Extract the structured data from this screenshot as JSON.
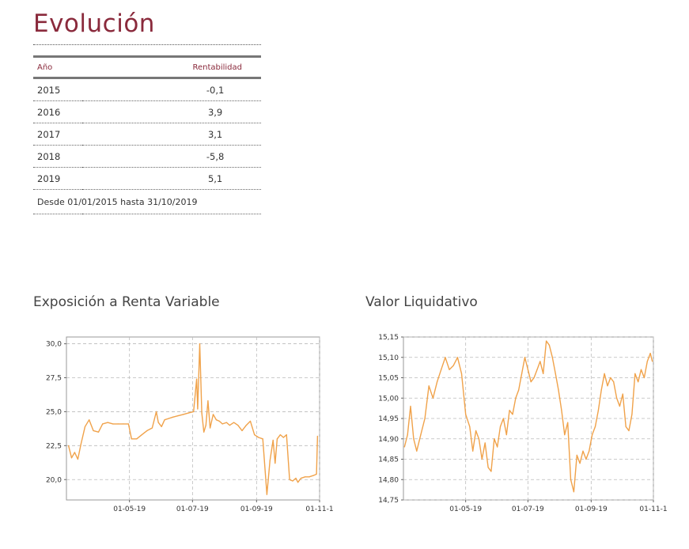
{
  "heading": "Evolución",
  "table": {
    "col_year": "Año",
    "col_return": "Rentabilidad",
    "rows": [
      {
        "year": "2015",
        "value": "-0,1"
      },
      {
        "year": "2016",
        "value": "3,9"
      },
      {
        "year": "2017",
        "value": "3,1"
      },
      {
        "year": "2018",
        "value": "-5,8"
      },
      {
        "year": "2019",
        "value": "5,1"
      }
    ],
    "footer": "Desde 01/01/2015 hasta 31/10/2019"
  },
  "chart_data": [
    {
      "type": "line",
      "title": "Exposición a Renta Variable",
      "xlabel": "",
      "ylabel": "",
      "ylim": [
        18.5,
        30.5
      ],
      "yticks": [
        20.0,
        22.5,
        25.0,
        27.5,
        30.0
      ],
      "ytick_labels": [
        "20,0",
        "22,5",
        "25,0",
        "27,5",
        "30,0"
      ],
      "x_range": [
        "2019-03-01",
        "2019-11-01"
      ],
      "xticks": [
        "2019-05-01",
        "2019-07-01",
        "2019-09-01",
        "2019-11-01"
      ],
      "xtick_labels": [
        "01-05-19",
        "01-07-19",
        "01-09-19",
        "01-11-1"
      ],
      "grid": true,
      "color": "#f0a24a",
      "x": [
        "2019-03-03",
        "2019-03-06",
        "2019-03-09",
        "2019-03-12",
        "2019-03-15",
        "2019-03-19",
        "2019-03-23",
        "2019-03-27",
        "2019-04-01",
        "2019-04-05",
        "2019-04-10",
        "2019-04-15",
        "2019-04-20",
        "2019-04-25",
        "2019-04-30",
        "2019-05-03",
        "2019-05-08",
        "2019-05-13",
        "2019-05-18",
        "2019-05-23",
        "2019-05-27",
        "2019-05-29",
        "2019-06-01",
        "2019-06-04",
        "2019-06-08",
        "2019-06-12",
        "2019-06-17",
        "2019-06-22",
        "2019-06-27",
        "2019-07-02",
        "2019-07-05",
        "2019-07-06",
        "2019-07-08",
        "2019-07-10",
        "2019-07-12",
        "2019-07-14",
        "2019-07-16",
        "2019-07-18",
        "2019-07-21",
        "2019-07-24",
        "2019-07-27",
        "2019-07-30",
        "2019-08-03",
        "2019-08-06",
        "2019-08-10",
        "2019-08-14",
        "2019-08-18",
        "2019-08-22",
        "2019-08-26",
        "2019-08-30",
        "2019-09-03",
        "2019-09-07",
        "2019-09-11",
        "2019-09-14",
        "2019-09-17",
        "2019-09-19",
        "2019-09-21",
        "2019-09-24",
        "2019-09-27",
        "2019-09-30",
        "2019-10-03",
        "2019-10-06",
        "2019-10-09",
        "2019-10-11",
        "2019-10-14",
        "2019-10-18",
        "2019-10-22",
        "2019-10-26",
        "2019-10-29",
        "2019-10-30"
      ],
      "values": [
        22.5,
        21.6,
        22.0,
        21.5,
        22.6,
        23.9,
        24.4,
        23.6,
        23.5,
        24.1,
        24.2,
        24.1,
        24.1,
        24.1,
        24.1,
        23.0,
        23.0,
        23.3,
        23.6,
        23.8,
        25.0,
        24.2,
        23.9,
        24.4,
        24.5,
        24.6,
        24.7,
        24.8,
        24.9,
        25.0,
        27.4,
        25.2,
        30.0,
        24.9,
        23.5,
        24.0,
        25.8,
        23.8,
        24.8,
        24.4,
        24.3,
        24.1,
        24.2,
        24.0,
        24.2,
        24.0,
        23.6,
        24.0,
        24.3,
        23.3,
        23.1,
        23.0,
        18.9,
        21.4,
        22.9,
        21.2,
        23.0,
        23.3,
        23.1,
        23.3,
        20.0,
        19.9,
        20.1,
        19.8,
        20.1,
        20.2,
        20.2,
        20.3,
        20.4,
        23.2
      ]
    },
    {
      "type": "line",
      "title": "Valor Liquidativo",
      "xlabel": "",
      "ylabel": "",
      "ylim": [
        14.75,
        15.15
      ],
      "yticks": [
        14.75,
        14.8,
        14.85,
        14.9,
        14.95,
        15.0,
        15.05,
        15.1,
        15.15
      ],
      "ytick_labels": [
        "14,75",
        "14,80",
        "14,85",
        "14,90",
        "14,95",
        "15,00",
        "15,05",
        "15,10",
        "15,15"
      ],
      "x_range": [
        "2019-03-01",
        "2019-11-01"
      ],
      "xticks": [
        "2019-05-01",
        "2019-07-01",
        "2019-09-01",
        "2019-11-01"
      ],
      "xtick_labels": [
        "01-05-19",
        "01-07-19",
        "01-09-19",
        "01-11-1"
      ],
      "grid": true,
      "color": "#f0a24a",
      "x": [
        "2019-03-02",
        "2019-03-05",
        "2019-03-08",
        "2019-03-11",
        "2019-03-14",
        "2019-03-18",
        "2019-03-22",
        "2019-03-26",
        "2019-03-30",
        "2019-04-03",
        "2019-04-07",
        "2019-04-11",
        "2019-04-15",
        "2019-04-19",
        "2019-04-23",
        "2019-04-27",
        "2019-05-01",
        "2019-05-05",
        "2019-05-08",
        "2019-05-11",
        "2019-05-14",
        "2019-05-17",
        "2019-05-20",
        "2019-05-23",
        "2019-05-26",
        "2019-05-29",
        "2019-06-01",
        "2019-06-04",
        "2019-06-07",
        "2019-06-10",
        "2019-06-13",
        "2019-06-16",
        "2019-06-19",
        "2019-06-22",
        "2019-06-25",
        "2019-06-28",
        "2019-07-01",
        "2019-07-04",
        "2019-07-07",
        "2019-07-10",
        "2019-07-13",
        "2019-07-16",
        "2019-07-19",
        "2019-07-22",
        "2019-07-25",
        "2019-07-28",
        "2019-07-31",
        "2019-08-03",
        "2019-08-06",
        "2019-08-09",
        "2019-08-12",
        "2019-08-15",
        "2019-08-18",
        "2019-08-21",
        "2019-08-24",
        "2019-08-27",
        "2019-08-30",
        "2019-09-02",
        "2019-09-05",
        "2019-09-08",
        "2019-09-11",
        "2019-09-14",
        "2019-09-17",
        "2019-09-20",
        "2019-09-23",
        "2019-09-26",
        "2019-09-29",
        "2019-10-02",
        "2019-10-05",
        "2019-10-08",
        "2019-10-11",
        "2019-10-14",
        "2019-10-17",
        "2019-10-20",
        "2019-10-23",
        "2019-10-26",
        "2019-10-29",
        "2019-10-31"
      ],
      "values": [
        14.88,
        14.91,
        14.98,
        14.9,
        14.87,
        14.91,
        14.95,
        15.03,
        15.0,
        15.04,
        15.07,
        15.1,
        15.07,
        15.08,
        15.1,
        15.06,
        14.96,
        14.93,
        14.87,
        14.92,
        14.9,
        14.85,
        14.89,
        14.83,
        14.82,
        14.9,
        14.88,
        14.93,
        14.95,
        14.91,
        14.97,
        14.96,
        15.0,
        15.02,
        15.06,
        15.1,
        15.07,
        15.04,
        15.05,
        15.07,
        15.09,
        15.06,
        15.14,
        15.13,
        15.1,
        15.06,
        15.02,
        14.97,
        14.91,
        14.94,
        14.8,
        14.77,
        14.86,
        14.84,
        14.87,
        14.85,
        14.87,
        14.91,
        14.93,
        14.97,
        15.02,
        15.06,
        15.03,
        15.05,
        15.04,
        15.0,
        14.98,
        15.01,
        14.93,
        14.92,
        14.96,
        15.06,
        15.04,
        15.07,
        15.05,
        15.09,
        15.11,
        15.09
      ]
    }
  ]
}
